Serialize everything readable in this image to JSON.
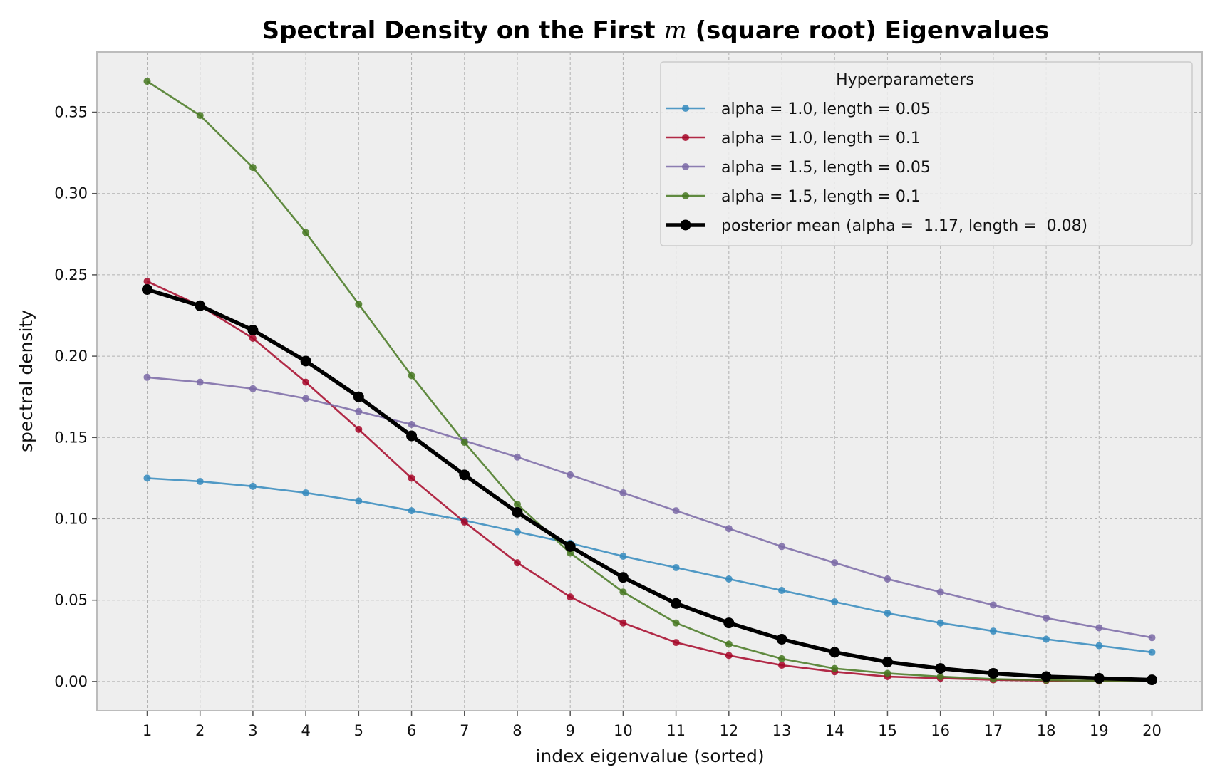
{
  "chart_data": {
    "type": "line",
    "title_prefix": "Spectral Density on the First ",
    "title_math": "m",
    "title_suffix": " (square root) Eigenvalues",
    "xlabel": "index eigenvalue (sorted)",
    "ylabel": "spectral density",
    "xlim": [
      0.05,
      20.95
    ],
    "ylim": [
      -0.018,
      0.387
    ],
    "xticks": [
      1,
      2,
      3,
      4,
      5,
      6,
      7,
      8,
      9,
      10,
      11,
      12,
      13,
      14,
      15,
      16,
      17,
      18,
      19,
      20
    ],
    "yticks": [
      0.0,
      0.05,
      0.1,
      0.15,
      0.2,
      0.25,
      0.3,
      0.35
    ],
    "ytick_labels": [
      "0.00",
      "0.05",
      "0.10",
      "0.15",
      "0.20",
      "0.25",
      "0.30",
      "0.35"
    ],
    "grid": true,
    "legend_title": "Hyperparameters",
    "legend_position": "top-right",
    "x": [
      1,
      2,
      3,
      4,
      5,
      6,
      7,
      8,
      9,
      10,
      11,
      12,
      13,
      14,
      15,
      16,
      17,
      18,
      19,
      20
    ],
    "series": [
      {
        "name": "alpha = 1.0, length = 0.05",
        "color": "#348ABD",
        "values": [
          0.125,
          0.123,
          0.12,
          0.116,
          0.111,
          0.105,
          0.099,
          0.092,
          0.085,
          0.077,
          0.07,
          0.063,
          0.056,
          0.049,
          0.042,
          0.036,
          0.031,
          0.026,
          0.022,
          0.018
        ]
      },
      {
        "name": "alpha = 1.0, length = 0.1",
        "color": "#A60628",
        "values": [
          0.246,
          0.231,
          0.211,
          0.184,
          0.155,
          0.125,
          0.098,
          0.073,
          0.052,
          0.036,
          0.024,
          0.016,
          0.01,
          0.006,
          0.003,
          0.002,
          0.001,
          0.0005,
          0.0003,
          0.0002
        ]
      },
      {
        "name": "alpha = 1.5, length = 0.05",
        "color": "#7A68A6",
        "values": [
          0.187,
          0.184,
          0.18,
          0.174,
          0.166,
          0.158,
          0.148,
          0.138,
          0.127,
          0.116,
          0.105,
          0.094,
          0.083,
          0.073,
          0.063,
          0.055,
          0.047,
          0.039,
          0.033,
          0.027
        ]
      },
      {
        "name": "alpha = 1.5, length = 0.1",
        "color": "#467821",
        "values": [
          0.369,
          0.348,
          0.316,
          0.276,
          0.232,
          0.188,
          0.147,
          0.109,
          0.079,
          0.055,
          0.036,
          0.023,
          0.014,
          0.008,
          0.005,
          0.003,
          0.0015,
          0.0008,
          0.0004,
          0.0002
        ]
      },
      {
        "name": "posterior mean (alpha =  1.17, length =  0.08)",
        "color": "#000000",
        "values": [
          0.241,
          0.231,
          0.216,
          0.197,
          0.175,
          0.151,
          0.127,
          0.104,
          0.083,
          0.064,
          0.048,
          0.036,
          0.026,
          0.018,
          0.012,
          0.008,
          0.005,
          0.003,
          0.002,
          0.001
        ]
      }
    ],
    "colors": {
      "axes_background": "#EEEEEE",
      "axes_edge": "#BCBCBC",
      "grid": "#B2B2B2"
    }
  }
}
